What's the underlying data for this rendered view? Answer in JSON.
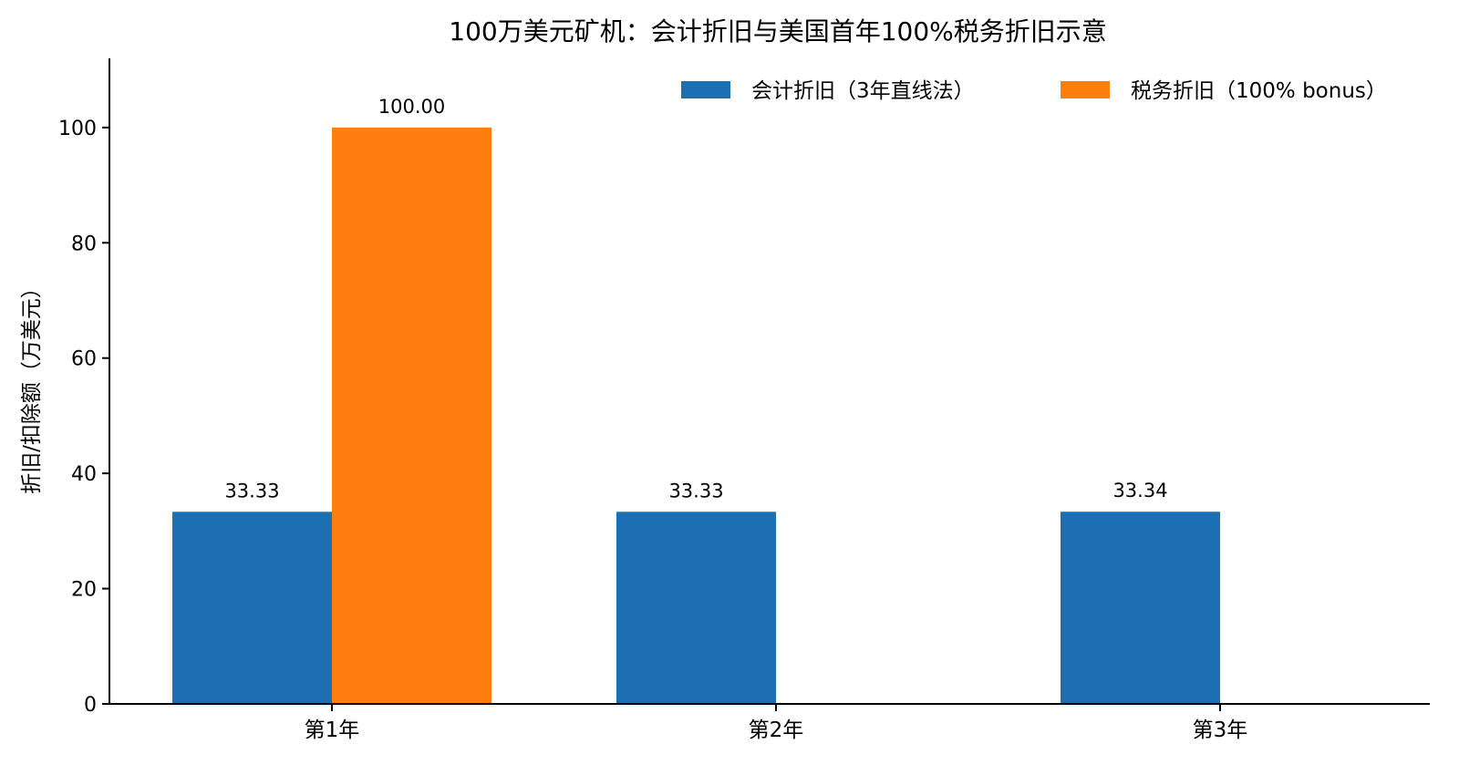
{
  "chart_data": {
    "type": "bar",
    "title": "100万美元矿机：会计折旧与美国首年100%税务折旧示意",
    "xlabel": "",
    "ylabel": "折旧/扣除额（万美元）",
    "categories": [
      "第1年",
      "第2年",
      "第3年"
    ],
    "series": [
      {
        "name": "会计折旧（3年直线法）",
        "color": "#1a70b3",
        "values": [
          33.33,
          33.33,
          33.34
        ],
        "labels": [
          "33.33",
          "33.33",
          "33.34"
        ]
      },
      {
        "name": "税务折旧（100% bonus）",
        "color": "#ff7f0e",
        "values": [
          100,
          0,
          0
        ],
        "labels": [
          "100.00",
          "",
          ""
        ]
      }
    ],
    "ylim": [
      0,
      112
    ],
    "yticks": [
      0,
      20,
      40,
      60,
      80,
      100
    ],
    "grid": false,
    "legend_position": "top-right"
  }
}
